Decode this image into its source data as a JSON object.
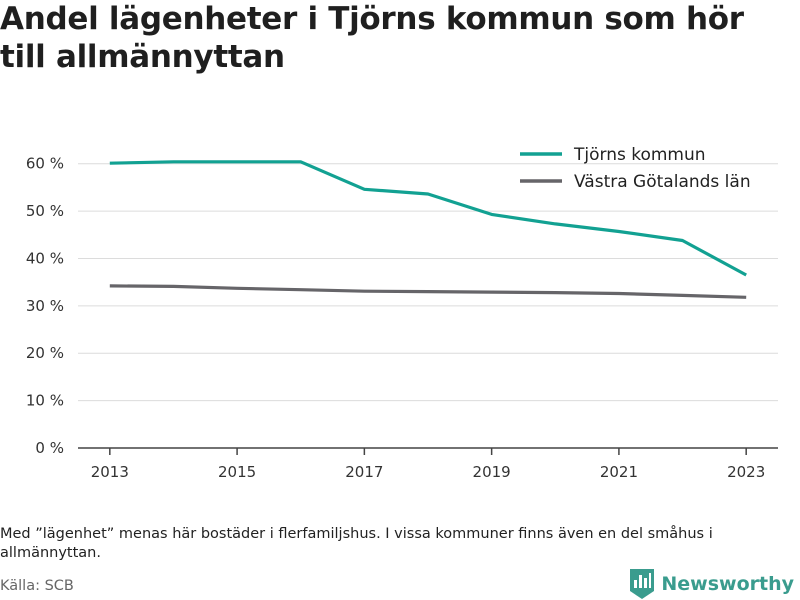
{
  "title": "Andel lägenheter i Tjörns kommun som hör till allmännyttan",
  "note": "Med ”lägenhet” menas här bostäder i flerfamiljshus. I vissa kommuner finns även en del småhus i allmännyttan.",
  "source": "Källa: SCB",
  "brand": {
    "name": "Newsworthy",
    "logo_icon": "bar-chart-badge-icon",
    "color": "#3a9c8e"
  },
  "chart_data": {
    "type": "line",
    "title": "Andel lägenheter i Tjörns kommun som hör till allmännyttan",
    "xlabel": "",
    "ylabel": "",
    "x": [
      2013,
      2014,
      2015,
      2016,
      2017,
      2018,
      2019,
      2020,
      2021,
      2022,
      2023
    ],
    "x_ticks": [
      "2013",
      "2015",
      "2017",
      "2019",
      "2021",
      "2023"
    ],
    "xlim": [
      2012.5,
      2023.5
    ],
    "ylim": [
      0,
      65
    ],
    "y_ticks": [
      0,
      10,
      20,
      30,
      40,
      50,
      60
    ],
    "y_tick_labels": [
      "0 %",
      "10 %",
      "20 %",
      "30 %",
      "40 %",
      "50 %",
      "60 %"
    ],
    "grid": "horizontal",
    "legend_position": "top-right",
    "series": [
      {
        "name": "Tjörns kommun",
        "color": "#12a192",
        "values": [
          60.1,
          60.4,
          60.4,
          60.4,
          54.6,
          53.6,
          49.3,
          47.3,
          45.7,
          43.8,
          36.5
        ]
      },
      {
        "name": "Västra Götalands län",
        "color": "#666569",
        "values": [
          34.2,
          34.1,
          33.7,
          33.4,
          33.1,
          33.0,
          32.9,
          32.8,
          32.6,
          32.2,
          31.8
        ]
      }
    ]
  }
}
